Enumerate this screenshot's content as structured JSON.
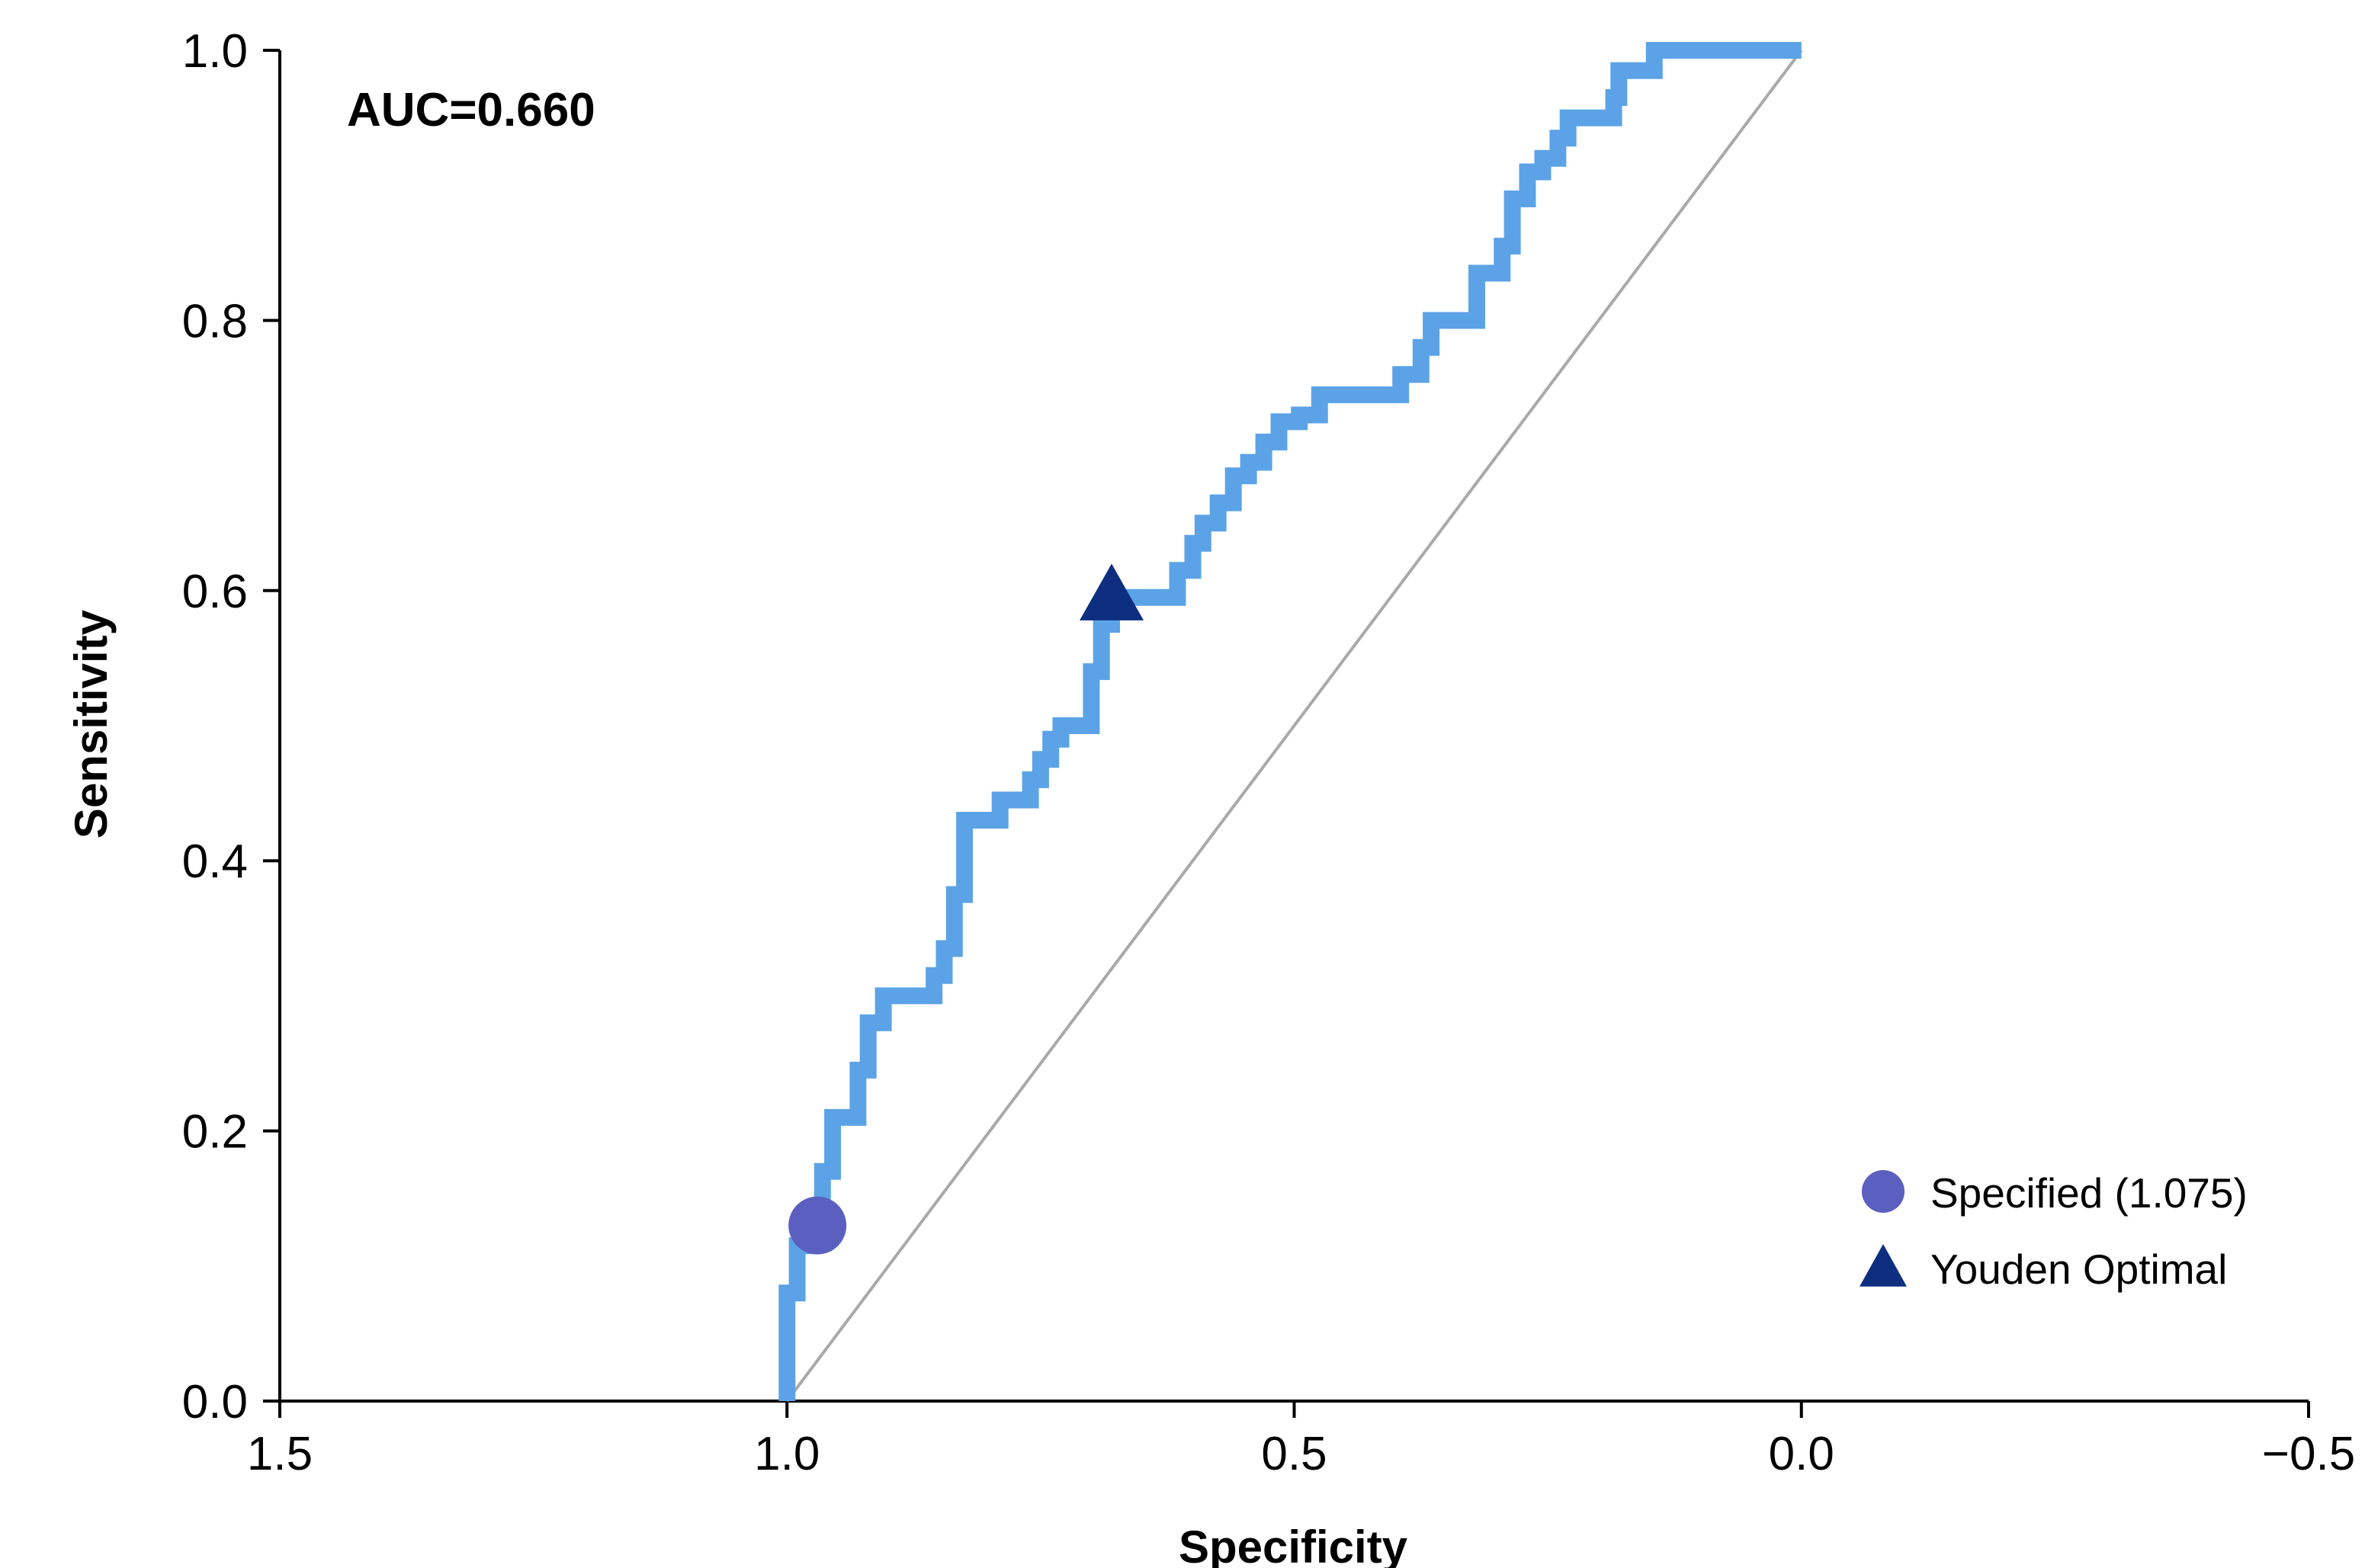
{
  "chart_data": {
    "type": "line",
    "title": "",
    "xlabel": "Specificity",
    "ylabel": "Sensitivity",
    "xlim": [
      1.5,
      -0.5
    ],
    "ylim": [
      0.0,
      1.0
    ],
    "x_reversed": true,
    "x_ticks": [
      1.5,
      1.0,
      0.5,
      0.0,
      -0.5
    ],
    "x_tick_labels": [
      "1.5",
      "1.0",
      "0.5",
      "0.0",
      "−0.5"
    ],
    "y_ticks": [
      0.0,
      0.2,
      0.4,
      0.6,
      0.8,
      1.0
    ],
    "y_tick_labels": [
      "0.0",
      "0.2",
      "0.4",
      "0.6",
      "0.8",
      "1.0"
    ],
    "grid": false,
    "annotation": "AUC=0.660",
    "colors": {
      "roc": "#5BA3E6",
      "diagonal": "#A9A9A9",
      "specified": "#5B5FC0",
      "youden": "#0E2F80",
      "axis": "#000000"
    },
    "series": [
      {
        "type": "step",
        "points": [
          [
            1.0,
            0.0
          ],
          [
            1.0,
            0.08
          ],
          [
            0.99,
            0.08
          ],
          [
            0.99,
            0.115
          ],
          [
            0.98,
            0.115
          ],
          [
            0.98,
            0.13
          ],
          [
            0.965,
            0.13
          ],
          [
            0.965,
            0.17
          ],
          [
            0.955,
            0.17
          ],
          [
            0.955,
            0.21
          ],
          [
            0.93,
            0.21
          ],
          [
            0.93,
            0.245
          ],
          [
            0.92,
            0.245
          ],
          [
            0.92,
            0.28
          ],
          [
            0.905,
            0.28
          ],
          [
            0.905,
            0.3
          ],
          [
            0.855,
            0.3
          ],
          [
            0.855,
            0.315
          ],
          [
            0.845,
            0.315
          ],
          [
            0.845,
            0.335
          ],
          [
            0.835,
            0.335
          ],
          [
            0.835,
            0.375
          ],
          [
            0.825,
            0.375
          ],
          [
            0.825,
            0.43
          ],
          [
            0.79,
            0.43
          ],
          [
            0.79,
            0.445
          ],
          [
            0.76,
            0.445
          ],
          [
            0.76,
            0.46
          ],
          [
            0.75,
            0.46
          ],
          [
            0.75,
            0.475
          ],
          [
            0.74,
            0.475
          ],
          [
            0.74,
            0.49
          ],
          [
            0.73,
            0.49
          ],
          [
            0.73,
            0.5
          ],
          [
            0.7,
            0.5
          ],
          [
            0.7,
            0.54
          ],
          [
            0.69,
            0.54
          ],
          [
            0.69,
            0.575
          ],
          [
            0.68,
            0.575
          ],
          [
            0.68,
            0.595
          ],
          [
            0.615,
            0.595
          ],
          [
            0.615,
            0.615
          ],
          [
            0.6,
            0.615
          ],
          [
            0.6,
            0.635
          ],
          [
            0.59,
            0.635
          ],
          [
            0.59,
            0.65
          ],
          [
            0.575,
            0.65
          ],
          [
            0.575,
            0.665
          ],
          [
            0.56,
            0.665
          ],
          [
            0.56,
            0.685
          ],
          [
            0.545,
            0.685
          ],
          [
            0.545,
            0.695
          ],
          [
            0.53,
            0.695
          ],
          [
            0.53,
            0.71
          ],
          [
            0.515,
            0.71
          ],
          [
            0.515,
            0.725
          ],
          [
            0.495,
            0.725
          ],
          [
            0.495,
            0.73
          ],
          [
            0.475,
            0.73
          ],
          [
            0.475,
            0.745
          ],
          [
            0.395,
            0.745
          ],
          [
            0.395,
            0.76
          ],
          [
            0.375,
            0.76
          ],
          [
            0.375,
            0.78
          ],
          [
            0.365,
            0.78
          ],
          [
            0.365,
            0.8
          ],
          [
            0.32,
            0.8
          ],
          [
            0.32,
            0.835
          ],
          [
            0.295,
            0.835
          ],
          [
            0.295,
            0.855
          ],
          [
            0.285,
            0.855
          ],
          [
            0.285,
            0.89
          ],
          [
            0.27,
            0.89
          ],
          [
            0.27,
            0.91
          ],
          [
            0.255,
            0.91
          ],
          [
            0.255,
            0.92
          ],
          [
            0.24,
            0.92
          ],
          [
            0.24,
            0.935
          ],
          [
            0.23,
            0.935
          ],
          [
            0.23,
            0.95
          ],
          [
            0.185,
            0.95
          ],
          [
            0.185,
            0.965
          ],
          [
            0.18,
            0.965
          ],
          [
            0.18,
            0.985
          ],
          [
            0.145,
            0.985
          ],
          [
            0.145,
            1.0
          ],
          [
            0.0,
            1.0
          ]
        ]
      },
      {
        "type": "reference_line",
        "points": [
          [
            1.0,
            0.0
          ],
          [
            0.0,
            1.0
          ]
        ]
      }
    ],
    "markers": [
      {
        "name": "Specified (1.075)",
        "shape": "circle",
        "x": 0.97,
        "y": 0.13
      },
      {
        "name": "Youden Optimal",
        "shape": "triangle",
        "x": 0.68,
        "y": 0.595
      }
    ],
    "legend_position": "bottom-right"
  }
}
